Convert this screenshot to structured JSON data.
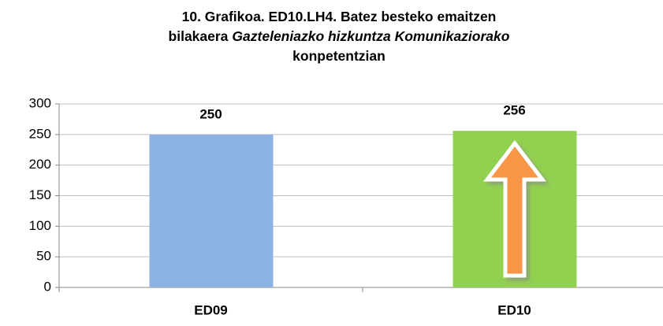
{
  "chart_data": {
    "type": "bar",
    "title": [
      [
        {
          "text": "10. Grafikoa. ED10.LH4. Batez besteko emaitzen",
          "italic": false
        }
      ],
      [
        {
          "text": "bilakaera",
          "italic": false
        },
        {
          "text": "Gazteleniazko hizkuntza Komunikaziorako",
          "italic": true
        }
      ],
      [
        {
          "text": "konpetentzian",
          "italic": false
        }
      ]
    ],
    "categories": [
      "ED09",
      "ED10"
    ],
    "values": [
      250,
      256
    ],
    "colors": [
      "#8db3e2",
      "#92d050"
    ],
    "ylim": [
      0,
      300
    ],
    "yticks": [
      0,
      50,
      100,
      150,
      200,
      250,
      300
    ],
    "grid": true
  }
}
